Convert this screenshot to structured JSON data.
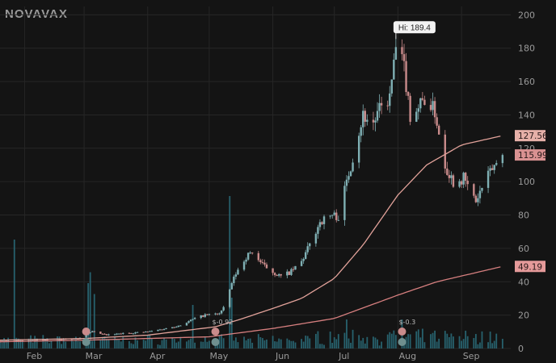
{
  "watermark": "NOVAVAX",
  "chart_data": {
    "type": "candlestick",
    "title": "",
    "xlabel": "",
    "ylabel": "",
    "ylim": [
      0,
      205
    ],
    "y_ticks": [
      0,
      20,
      40,
      60,
      80,
      100,
      120,
      140,
      160,
      180,
      200
    ],
    "x_ticks": [
      "Feb",
      "Mar",
      "Apr",
      "May",
      "Jun",
      "Jul",
      "Aug",
      "Sep"
    ],
    "grid": true,
    "colors": {
      "up": "#7fb0b4",
      "down": "#c98b8b",
      "ma_short": "#e2a29a",
      "ma_long": "#d67f7f",
      "volume": "#2a6f7d",
      "grid": "#262626",
      "tick_text": "#9a9a9a"
    },
    "annotation": {
      "label": "Hi: 189.4",
      "value": 189.4,
      "date": "2020-07-31"
    },
    "price_labels": [
      {
        "value": 127.56,
        "label": "127.56",
        "series": "ma_short"
      },
      {
        "value": 115.99,
        "label": "115.99",
        "series": "last_price"
      },
      {
        "value": 49.19,
        "label": "49.19",
        "series": "ma_long"
      }
    ],
    "event_markers": [
      {
        "date": "2020-03-02",
        "text": ""
      },
      {
        "date": "2020-05-04",
        "text": "$-0.92"
      },
      {
        "date": "2020-08-03",
        "text": "$-0.3"
      }
    ],
    "price_path": [
      [
        "2020-01-20",
        5
      ],
      [
        "2020-01-31",
        4.5
      ],
      [
        "2020-02-14",
        5
      ],
      [
        "2020-02-27",
        6
      ],
      [
        "2020-03-05",
        10
      ],
      [
        "2020-03-12",
        8
      ],
      [
        "2020-03-20",
        9
      ],
      [
        "2020-04-01",
        10
      ],
      [
        "2020-04-10",
        12
      ],
      [
        "2020-04-17",
        14
      ],
      [
        "2020-04-24",
        18
      ],
      [
        "2020-04-29",
        20
      ],
      [
        "2020-05-06",
        21
      ],
      [
        "2020-05-08",
        24
      ],
      [
        "2020-05-12",
        39
      ],
      [
        "2020-05-14",
        45
      ],
      [
        "2020-05-19",
        55
      ],
      [
        "2020-05-22",
        58
      ],
      [
        "2020-05-27",
        50
      ],
      [
        "2020-06-01",
        46
      ],
      [
        "2020-06-05",
        43
      ],
      [
        "2020-06-10",
        46
      ],
      [
        "2020-06-15",
        52
      ],
      [
        "2020-06-19",
        62
      ],
      [
        "2020-06-24",
        76
      ],
      [
        "2020-06-30",
        80
      ],
      [
        "2020-07-03",
        79
      ],
      [
        "2020-07-07",
        100
      ],
      [
        "2020-07-10",
        115
      ],
      [
        "2020-07-15",
        140
      ],
      [
        "2020-07-20",
        135
      ],
      [
        "2020-07-24",
        145
      ],
      [
        "2020-07-28",
        150
      ],
      [
        "2020-07-31",
        180
      ],
      [
        "2020-08-04",
        168
      ],
      [
        "2020-08-07",
        140
      ],
      [
        "2020-08-11",
        145
      ],
      [
        "2020-08-14",
        150
      ],
      [
        "2020-08-19",
        142
      ],
      [
        "2020-08-24",
        110
      ],
      [
        "2020-08-28",
        100
      ],
      [
        "2020-09-02",
        102
      ],
      [
        "2020-09-08",
        88
      ],
      [
        "2020-09-11",
        96
      ],
      [
        "2020-09-16",
        108
      ],
      [
        "2020-09-21",
        115.99
      ]
    ],
    "ma_short_path": [
      [
        "2020-01-20",
        5
      ],
      [
        "2020-03-02",
        6
      ],
      [
        "2020-04-01",
        8
      ],
      [
        "2020-05-04",
        13
      ],
      [
        "2020-05-15",
        17
      ],
      [
        "2020-06-01",
        24
      ],
      [
        "2020-06-15",
        30
      ],
      [
        "2020-07-01",
        42
      ],
      [
        "2020-07-15",
        62
      ],
      [
        "2020-08-01",
        92
      ],
      [
        "2020-08-15",
        110
      ],
      [
        "2020-09-01",
        122
      ],
      [
        "2020-09-21",
        127.56
      ]
    ],
    "ma_long_path": [
      [
        "2020-01-20",
        4
      ],
      [
        "2020-03-02",
        5
      ],
      [
        "2020-04-01",
        6
      ],
      [
        "2020-05-01",
        7
      ],
      [
        "2020-06-01",
        12
      ],
      [
        "2020-07-01",
        18
      ],
      [
        "2020-08-01",
        32
      ],
      [
        "2020-08-20",
        40
      ],
      [
        "2020-09-21",
        49.19
      ]
    ]
  }
}
